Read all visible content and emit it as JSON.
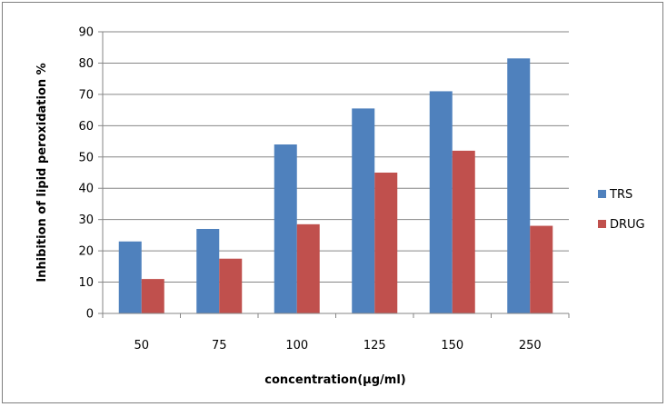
{
  "chart_data": {
    "type": "bar",
    "categories": [
      "50",
      "75",
      "100",
      "125",
      "150",
      "250"
    ],
    "series": [
      {
        "name": "TRS",
        "values": [
          23,
          27,
          54,
          65.5,
          71,
          81.5
        ],
        "color": "#4f81bd"
      },
      {
        "name": "DRUG",
        "values": [
          11,
          17.5,
          28.5,
          45,
          52,
          28
        ],
        "color": "#c0504d"
      }
    ],
    "title": "",
    "xlabel": "concentration(µg/ml)",
    "ylabel": "Inhibition of lipid  peroxidation %",
    "ylim": [
      0,
      90
    ],
    "yticks": [
      0,
      10,
      20,
      30,
      40,
      50,
      60,
      70,
      80,
      90
    ],
    "grid": true,
    "legend_position": "right"
  }
}
